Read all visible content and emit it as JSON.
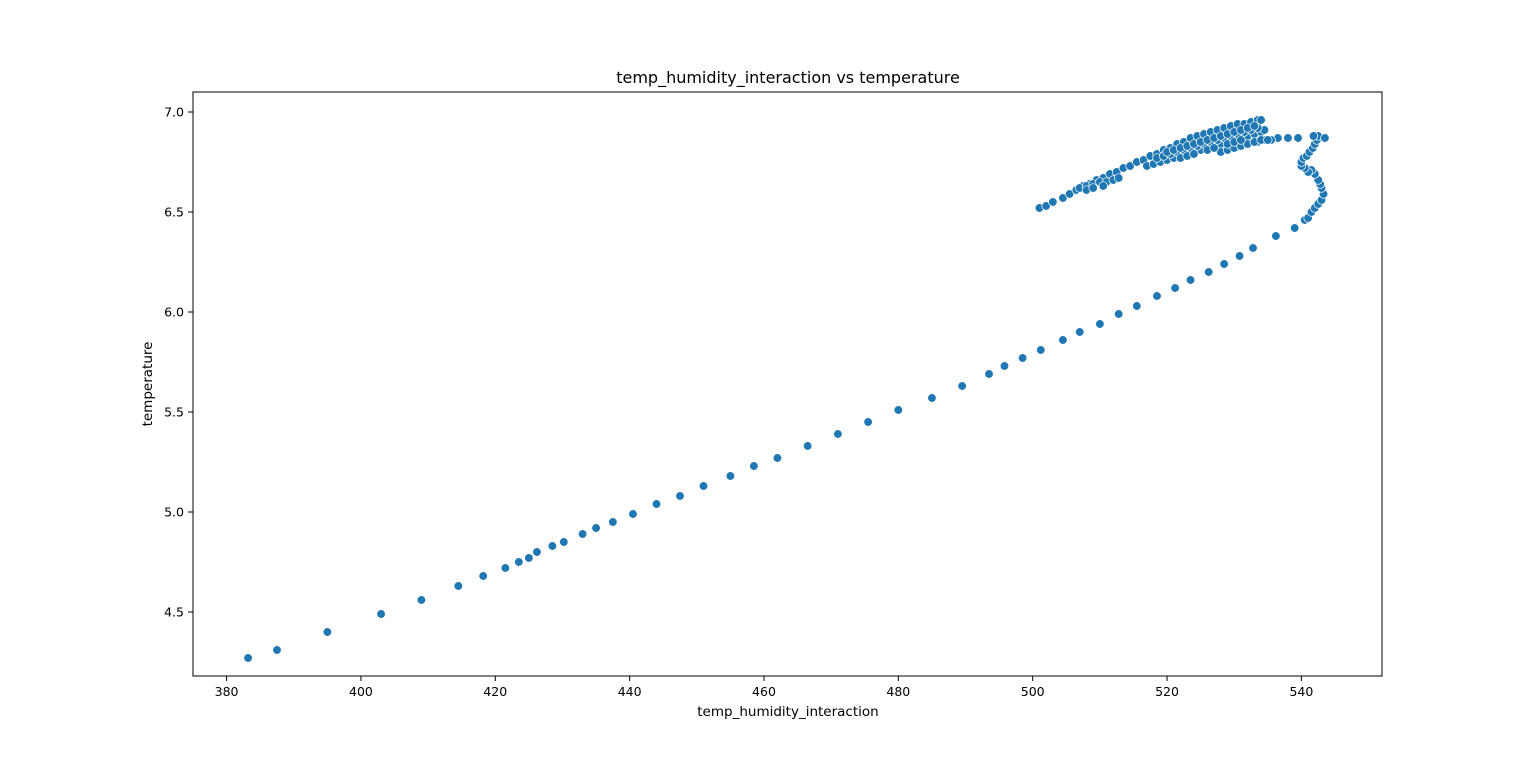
{
  "chart_data": {
    "type": "scatter",
    "title": "temp_humidity_interaction vs temperature",
    "xlabel": "temp_humidity_interaction",
    "ylabel": "temperature",
    "xlim": [
      375,
      552
    ],
    "ylim": [
      4.18,
      7.1
    ],
    "xticks": [
      380,
      400,
      420,
      440,
      460,
      480,
      500,
      520,
      540
    ],
    "yticks": [
      4.5,
      5.0,
      5.5,
      6.0,
      6.5,
      7.0
    ],
    "xtick_labels": [
      "380",
      "400",
      "420",
      "440",
      "460",
      "480",
      "500",
      "520",
      "540"
    ],
    "ytick_labels": [
      "4.5",
      "5.0",
      "5.5",
      "6.0",
      "6.5",
      "7.0"
    ],
    "grid": false,
    "legend": "none",
    "point_color": "#1f77b4",
    "points": [
      [
        383.2,
        4.27
      ],
      [
        387.5,
        4.31
      ],
      [
        395.0,
        4.4
      ],
      [
        403.0,
        4.49
      ],
      [
        409.0,
        4.56
      ],
      [
        414.5,
        4.63
      ],
      [
        418.2,
        4.68
      ],
      [
        421.5,
        4.72
      ],
      [
        423.5,
        4.75
      ],
      [
        425.0,
        4.77
      ],
      [
        426.2,
        4.8
      ],
      [
        428.5,
        4.83
      ],
      [
        430.2,
        4.85
      ],
      [
        433.0,
        4.89
      ],
      [
        435.0,
        4.92
      ],
      [
        437.5,
        4.95
      ],
      [
        440.5,
        4.99
      ],
      [
        444.0,
        5.04
      ],
      [
        447.5,
        5.08
      ],
      [
        451.0,
        5.13
      ],
      [
        455.0,
        5.18
      ],
      [
        458.5,
        5.23
      ],
      [
        462.0,
        5.27
      ],
      [
        466.5,
        5.33
      ],
      [
        471.0,
        5.39
      ],
      [
        475.5,
        5.45
      ],
      [
        480.0,
        5.51
      ],
      [
        485.0,
        5.57
      ],
      [
        489.5,
        5.63
      ],
      [
        493.5,
        5.69
      ],
      [
        495.8,
        5.73
      ],
      [
        498.5,
        5.77
      ],
      [
        501.2,
        5.81
      ],
      [
        504.5,
        5.86
      ],
      [
        507.0,
        5.9
      ],
      [
        510.0,
        5.94
      ],
      [
        512.8,
        5.99
      ],
      [
        515.5,
        6.03
      ],
      [
        518.5,
        6.08
      ],
      [
        521.2,
        6.12
      ],
      [
        523.5,
        6.16
      ],
      [
        526.2,
        6.2
      ],
      [
        528.5,
        6.24
      ],
      [
        530.8,
        6.28
      ],
      [
        532.8,
        6.32
      ],
      [
        536.2,
        6.38
      ],
      [
        539.0,
        6.42
      ],
      [
        540.5,
        6.46
      ],
      [
        541.0,
        6.47
      ],
      [
        541.5,
        6.5
      ],
      [
        542.0,
        6.52
      ],
      [
        542.5,
        6.54
      ],
      [
        543.0,
        6.56
      ],
      [
        543.3,
        6.59
      ],
      [
        543.0,
        6.62
      ],
      [
        542.8,
        6.64
      ],
      [
        542.5,
        6.66
      ],
      [
        542.0,
        6.69
      ],
      [
        541.5,
        6.71
      ],
      [
        541.0,
        6.7
      ],
      [
        540.5,
        6.72
      ],
      [
        540.0,
        6.73
      ],
      [
        540.0,
        6.75
      ],
      [
        540.3,
        6.77
      ],
      [
        540.8,
        6.78
      ],
      [
        541.2,
        6.8
      ],
      [
        541.7,
        6.82
      ],
      [
        542.0,
        6.84
      ],
      [
        542.3,
        6.86
      ],
      [
        542.5,
        6.88
      ],
      [
        541.8,
        6.88
      ],
      [
        543.5,
        6.87
      ],
      [
        539.5,
        6.87
      ],
      [
        538.0,
        6.87
      ],
      [
        536.5,
        6.87
      ],
      [
        535.5,
        6.86
      ],
      [
        534.5,
        6.86
      ],
      [
        533.5,
        6.85
      ],
      [
        532.0,
        6.85
      ],
      [
        530.5,
        6.84
      ],
      [
        529.0,
        6.83
      ],
      [
        528.0,
        6.82
      ],
      [
        501.0,
        6.52
      ],
      [
        502.0,
        6.53
      ],
      [
        503.0,
        6.55
      ],
      [
        504.5,
        6.57
      ],
      [
        505.5,
        6.59
      ],
      [
        506.5,
        6.61
      ],
      [
        507.5,
        6.63
      ],
      [
        508.5,
        6.64
      ],
      [
        509.5,
        6.66
      ],
      [
        510.5,
        6.67
      ],
      [
        511.5,
        6.69
      ],
      [
        512.5,
        6.7
      ],
      [
        513.5,
        6.72
      ],
      [
        514.5,
        6.73
      ],
      [
        515.5,
        6.75
      ],
      [
        516.5,
        6.76
      ],
      [
        517.5,
        6.78
      ],
      [
        518.5,
        6.79
      ],
      [
        519.5,
        6.81
      ],
      [
        520.5,
        6.82
      ],
      [
        521.5,
        6.84
      ],
      [
        522.5,
        6.85
      ],
      [
        523.5,
        6.87
      ],
      [
        524.5,
        6.88
      ],
      [
        525.5,
        6.89
      ],
      [
        526.5,
        6.9
      ],
      [
        527.5,
        6.91
      ],
      [
        528.5,
        6.92
      ],
      [
        529.5,
        6.93
      ],
      [
        530.5,
        6.94
      ],
      [
        531.5,
        6.94
      ],
      [
        532.5,
        6.95
      ],
      [
        533.5,
        6.96
      ],
      [
        534.0,
        6.96
      ],
      [
        507.0,
        6.62
      ],
      [
        508.0,
        6.63
      ],
      [
        509.0,
        6.64
      ],
      [
        510.0,
        6.65
      ],
      [
        511.0,
        6.65
      ],
      [
        512.0,
        6.66
      ],
      [
        512.8,
        6.67
      ],
      [
        508.0,
        6.61
      ],
      [
        509.0,
        6.62
      ],
      [
        510.5,
        6.63
      ],
      [
        517.0,
        6.73
      ],
      [
        518.0,
        6.74
      ],
      [
        519.0,
        6.75
      ],
      [
        520.0,
        6.76
      ],
      [
        521.0,
        6.77
      ],
      [
        522.0,
        6.78
      ],
      [
        523.0,
        6.79
      ],
      [
        524.0,
        6.8
      ],
      [
        525.0,
        6.81
      ],
      [
        526.0,
        6.82
      ],
      [
        527.0,
        6.83
      ],
      [
        528.0,
        6.84
      ],
      [
        529.0,
        6.85
      ],
      [
        530.0,
        6.86
      ],
      [
        531.0,
        6.87
      ],
      [
        532.0,
        6.88
      ],
      [
        533.0,
        6.89
      ],
      [
        534.0,
        6.9
      ],
      [
        534.5,
        6.91
      ],
      [
        518.5,
        6.77
      ],
      [
        519.5,
        6.78
      ],
      [
        520.5,
        6.79
      ],
      [
        521.5,
        6.8
      ],
      [
        522.5,
        6.81
      ],
      [
        523.5,
        6.82
      ],
      [
        524.5,
        6.83
      ],
      [
        525.5,
        6.84
      ],
      [
        526.5,
        6.85
      ],
      [
        527.5,
        6.86
      ],
      [
        528.5,
        6.87
      ],
      [
        529.5,
        6.88
      ],
      [
        530.5,
        6.89
      ],
      [
        531.5,
        6.9
      ],
      [
        532.5,
        6.91
      ],
      [
        533.5,
        6.92
      ],
      [
        520.0,
        6.8
      ],
      [
        521.0,
        6.81
      ],
      [
        522.0,
        6.82
      ],
      [
        523.0,
        6.83
      ],
      [
        524.0,
        6.84
      ],
      [
        525.0,
        6.85
      ],
      [
        526.0,
        6.86
      ],
      [
        527.0,
        6.87
      ],
      [
        528.0,
        6.88
      ],
      [
        529.0,
        6.89
      ],
      [
        530.0,
        6.9
      ],
      [
        531.0,
        6.91
      ],
      [
        532.0,
        6.92
      ],
      [
        533.0,
        6.93
      ],
      [
        528.0,
        6.8
      ],
      [
        529.0,
        6.81
      ],
      [
        530.0,
        6.82
      ],
      [
        531.0,
        6.83
      ],
      [
        532.0,
        6.84
      ],
      [
        533.0,
        6.85
      ],
      [
        534.0,
        6.86
      ],
      [
        535.0,
        6.86
      ],
      [
        522.0,
        6.77
      ],
      [
        523.0,
        6.78
      ],
      [
        524.0,
        6.79
      ],
      [
        526.0,
        6.81
      ],
      [
        527.0,
        6.82
      ],
      [
        529.0,
        6.84
      ],
      [
        530.0,
        6.85
      ],
      [
        531.0,
        6.86
      ]
    ]
  }
}
